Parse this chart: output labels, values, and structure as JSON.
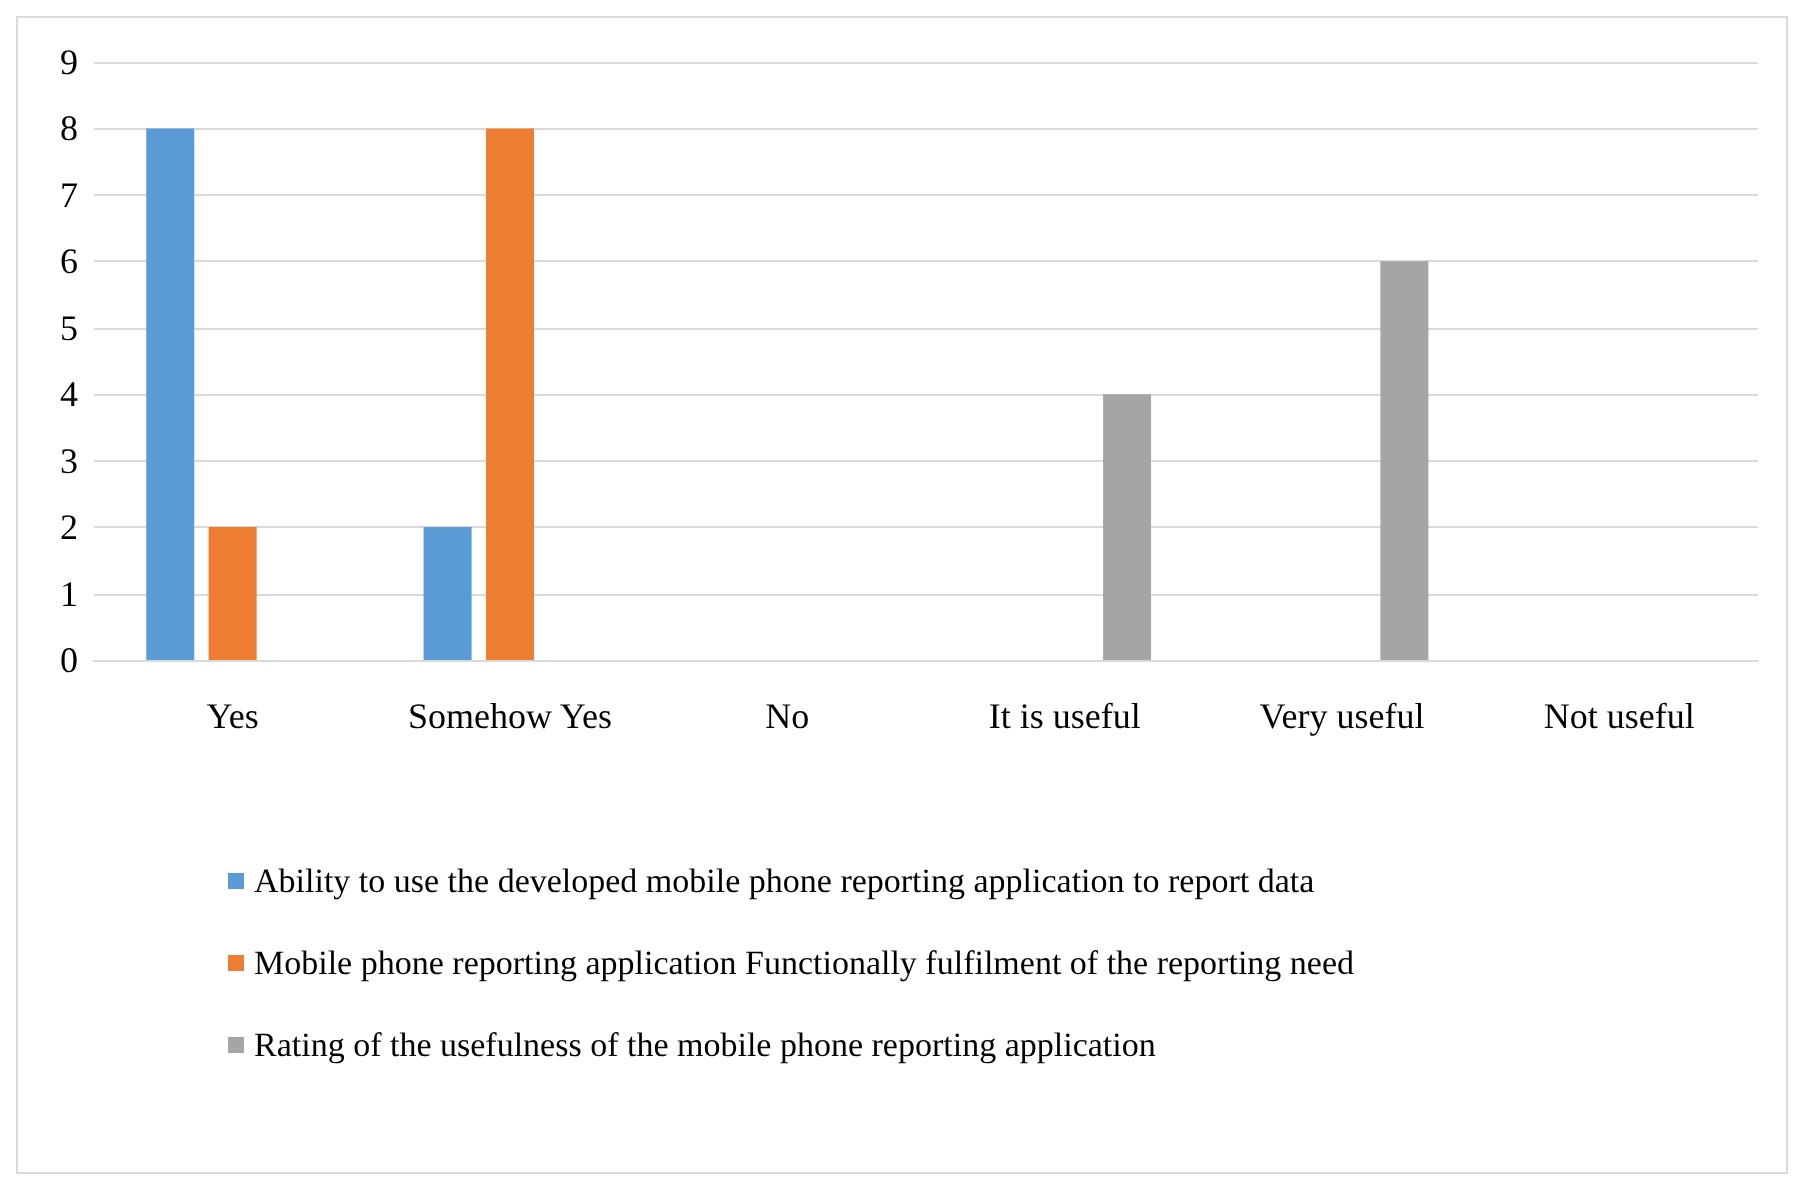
{
  "chart_data": {
    "type": "bar",
    "categories": [
      "Yes",
      "Somehow Yes",
      "No",
      "It is useful",
      "Very useful",
      "Not useful"
    ],
    "series": [
      {
        "name": "Ability to use the developed mobile phone reporting application to report data",
        "color": "#5b9bd5",
        "values": [
          8,
          2,
          0,
          null,
          null,
          null
        ]
      },
      {
        "name": "Mobile phone reporting application Functionally fulfilment of the reporting need",
        "color": "#ed7d31",
        "values": [
          2,
          8,
          0,
          null,
          null,
          null
        ]
      },
      {
        "name": "Rating of the usefulness of the mobile phone reporting application",
        "color": "#a5a5a5",
        "values": [
          null,
          null,
          null,
          4,
          6,
          0
        ]
      }
    ],
    "ylim": [
      0,
      9
    ],
    "yticks": [
      0,
      1,
      2,
      3,
      4,
      5,
      6,
      7,
      8,
      9
    ],
    "grid": "y",
    "legend": "bottom"
  }
}
